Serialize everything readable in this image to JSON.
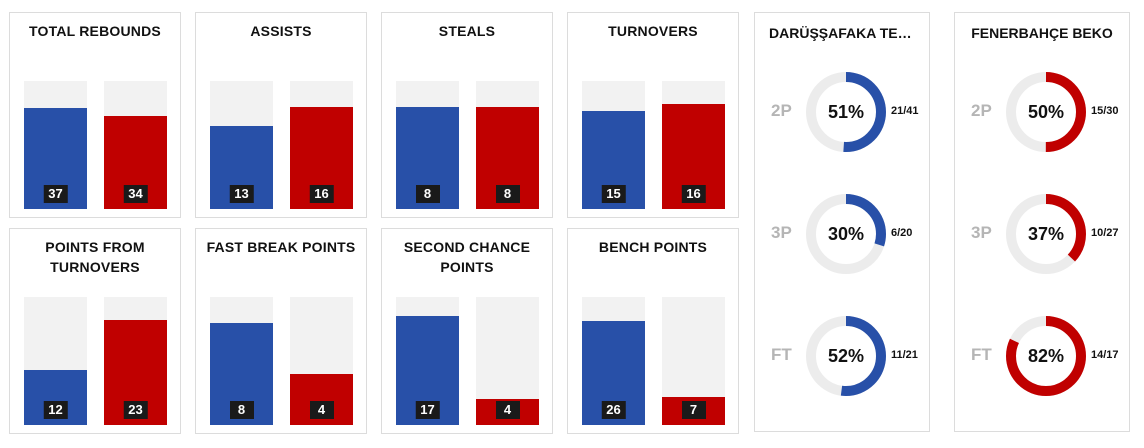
{
  "colors": {
    "home": "#2850a8",
    "away": "#c00000",
    "track": "#f2f2f2",
    "label_bg": "#1a1a1a",
    "ring_track": "#ececec"
  },
  "chart_data": [
    {
      "type": "bar",
      "title": "TOTAL REBOUNDS",
      "values": [
        37,
        34
      ],
      "ylim": [
        0,
        47
      ]
    },
    {
      "type": "bar",
      "title": "ASSISTS",
      "values": [
        13,
        16
      ],
      "ylim": [
        0,
        20
      ]
    },
    {
      "type": "bar",
      "title": "STEALS",
      "values": [
        8,
        8
      ],
      "ylim": [
        0,
        10
      ]
    },
    {
      "type": "bar",
      "title": "TURNOVERS",
      "values": [
        15,
        16
      ],
      "ylim": [
        0,
        19.5
      ]
    },
    {
      "type": "bar",
      "title": "POINTS FROM TURNOVERS",
      "values": [
        12,
        23
      ],
      "ylim": [
        0,
        28
      ]
    },
    {
      "type": "bar",
      "title": "FAST BREAK POINTS",
      "values": [
        8,
        4
      ],
      "ylim": [
        0,
        10
      ]
    },
    {
      "type": "bar",
      "title": "SECOND CHANCE POINTS",
      "values": [
        17,
        4
      ],
      "ylim": [
        0,
        20
      ]
    },
    {
      "type": "bar",
      "title": "BENCH POINTS",
      "values": [
        26,
        7
      ],
      "ylim": [
        0,
        32
      ]
    },
    {
      "type": "pie",
      "team": "DARÜŞŞAFAKA TEKFEN",
      "rows": [
        {
          "label": "2P",
          "percent": 51,
          "percent_text": "51%",
          "made_attempted": "21/41"
        },
        {
          "label": "3P",
          "percent": 30,
          "percent_text": "30%",
          "made_attempted": "6/20"
        },
        {
          "label": "FT",
          "percent": 52,
          "percent_text": "52%",
          "made_attempted": "11/21"
        }
      ]
    },
    {
      "type": "pie",
      "team": "FENERBAHÇE BEKO",
      "rows": [
        {
          "label": "2P",
          "percent": 50,
          "percent_text": "50%",
          "made_attempted": "15/30"
        },
        {
          "label": "3P",
          "percent": 37,
          "percent_text": "37%",
          "made_attempted": "10/27"
        },
        {
          "label": "FT",
          "percent": 82,
          "percent_text": "82%",
          "made_attempted": "14/17"
        }
      ]
    }
  ]
}
